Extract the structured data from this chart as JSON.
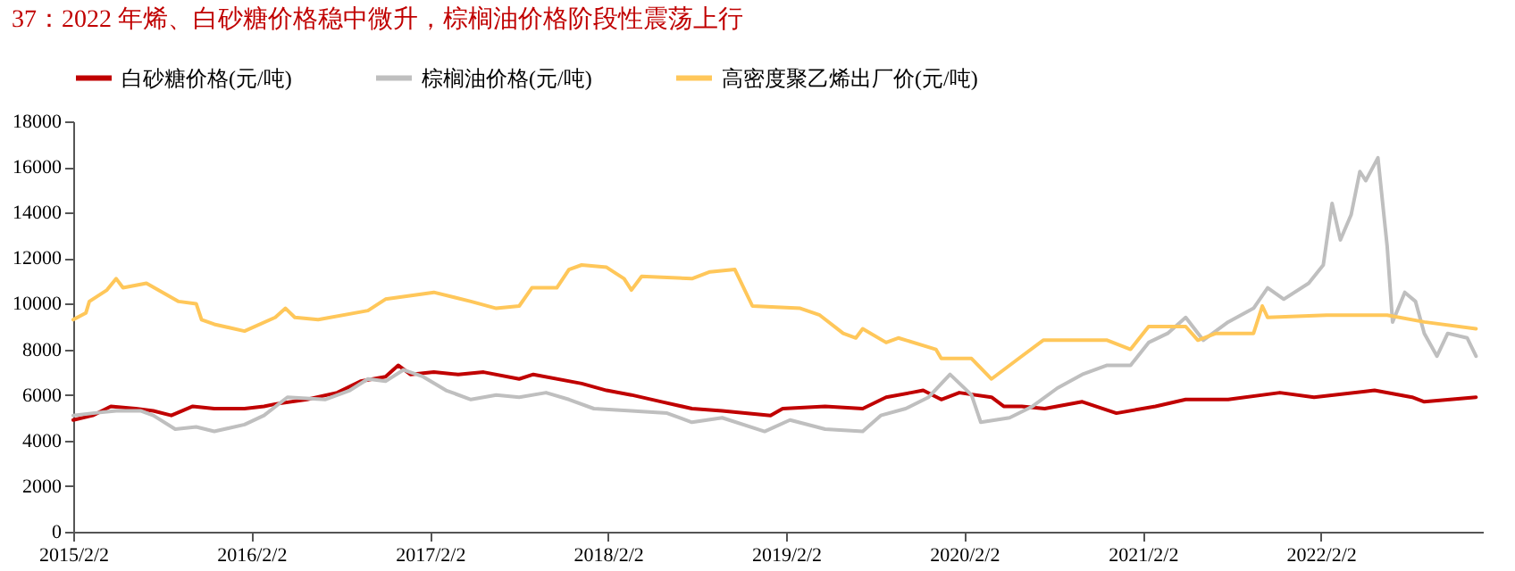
{
  "chart_data": {
    "type": "line",
    "title": "37：2022 年烯、白砂糖价格稳中微升，棕榈油价格阶段性震荡上行",
    "legend": "top",
    "line_style": "solid",
    "grid": false,
    "xlim": [
      "2015-02-02",
      "2022-12-31"
    ],
    "xticks": [
      {
        "value": "2015-02-02",
        "label": "2015/2/2"
      },
      {
        "value": "2016-02-02",
        "label": "2016/2/2"
      },
      {
        "value": "2017-02-02",
        "label": "2017/2/2"
      },
      {
        "value": "2018-02-02",
        "label": "2018/2/2"
      },
      {
        "value": "2019-02-02",
        "label": "2019/2/2"
      },
      {
        "value": "2020-02-02",
        "label": "2020/2/2"
      },
      {
        "value": "2021-02-02",
        "label": "2021/2/2"
      },
      {
        "value": "2022-02-02",
        "label": "2022/2/2"
      }
    ],
    "ylim": [
      0,
      18000
    ],
    "yticks": [
      0,
      2000,
      4000,
      6000,
      8000,
      10000,
      12000,
      14000,
      16000,
      18000
    ],
    "series": [
      {
        "name": "白砂糖价格(元/吨)",
        "color": "#c00000",
        "x": [
          "2015-02-02",
          "2015-03-14",
          "2015-04-20",
          "2015-06-10",
          "2015-07-16",
          "2015-08-22",
          "2015-10-05",
          "2015-11-18",
          "2016-01-19",
          "2016-02-28",
          "2016-03-22",
          "2016-05-26",
          "2016-07-27",
          "2016-09-13",
          "2016-11-03",
          "2016-11-29",
          "2016-12-24",
          "2017-02-10",
          "2017-04-01",
          "2017-05-23",
          "2017-08-04",
          "2017-09-02",
          "2017-12-10",
          "2018-01-30",
          "2018-03-22",
          "2018-05-23",
          "2018-07-24",
          "2018-09-24",
          "2019-01-01",
          "2019-01-26",
          "2019-04-23",
          "2019-07-09",
          "2019-08-26",
          "2019-10-16",
          "2019-11-10",
          "2019-12-17",
          "2020-01-23",
          "2020-03-29",
          "2020-04-23",
          "2020-05-30",
          "2020-07-16",
          "2020-10-01",
          "2020-12-10",
          "2021-02-28",
          "2021-05-01",
          "2021-07-27",
          "2021-11-10",
          "2022-01-19",
          "2022-05-23",
          "2022-08-08",
          "2022-09-02",
          "2022-12-17"
        ],
        "values": [
          4900,
          5100,
          5500,
          5400,
          5300,
          5100,
          5500,
          5400,
          5400,
          5500,
          5600,
          5800,
          6100,
          6600,
          6800,
          7300,
          6900,
          7000,
          6900,
          7000,
          6700,
          6900,
          6500,
          6200,
          6000,
          5700,
          5400,
          5300,
          5100,
          5400,
          5500,
          5400,
          5900,
          6100,
          6200,
          5800,
          6100,
          5900,
          5500,
          5500,
          5400,
          5700,
          5200,
          5500,
          5800,
          5800,
          6100,
          5900,
          6200,
          5900,
          5700,
          5900
        ]
      },
      {
        "name": "棕榈油价格(元/吨)",
        "color": "#bfbfbf",
        "x": [
          "2015-02-02",
          "2015-03-14",
          "2015-05-01",
          "2015-06-21",
          "2015-07-16",
          "2015-08-30",
          "2015-10-12",
          "2015-11-18",
          "2016-01-19",
          "2016-02-28",
          "2016-04-16",
          "2016-07-02",
          "2016-08-22",
          "2016-09-28",
          "2016-11-03",
          "2016-12-10",
          "2017-01-19",
          "2017-03-07",
          "2017-04-27",
          "2017-06-18",
          "2017-08-04",
          "2017-09-28",
          "2017-11-14",
          "2018-01-04",
          "2018-03-22",
          "2018-06-03",
          "2018-07-24",
          "2018-09-24",
          "2018-12-20",
          "2019-02-10",
          "2019-04-23",
          "2019-07-09",
          "2019-08-15",
          "2019-10-05",
          "2019-11-21",
          "2020-01-04",
          "2020-02-17",
          "2020-03-07",
          "2020-05-05",
          "2020-06-21",
          "2020-08-11",
          "2020-10-01",
          "2020-11-21",
          "2021-01-08",
          "2021-02-14",
          "2021-03-25",
          "2021-05-01",
          "2021-06-06",
          "2021-07-27",
          "2021-09-17",
          "2021-10-16",
          "2021-11-18",
          "2022-01-08",
          "2022-02-07",
          "2022-02-25",
          "2022-03-14",
          "2022-04-05",
          "2022-04-23",
          "2022-05-05",
          "2022-05-30",
          "2022-06-18",
          "2022-06-29",
          "2022-07-24",
          "2022-08-15",
          "2022-09-02",
          "2022-09-28",
          "2022-10-20",
          "2022-11-29",
          "2022-12-17"
        ],
        "values": [
          5100,
          5200,
          5300,
          5300,
          5100,
          4500,
          4600,
          4400,
          4700,
          5100,
          5900,
          5800,
          6200,
          6700,
          6600,
          7100,
          6800,
          6200,
          5800,
          6000,
          5900,
          6100,
          5800,
          5400,
          5300,
          5200,
          4800,
          5000,
          4400,
          4900,
          4500,
          4400,
          5100,
          5400,
          5900,
          6900,
          6000,
          4800,
          5000,
          5500,
          6300,
          6900,
          7300,
          7300,
          8300,
          8700,
          9400,
          8400,
          9200,
          9800,
          10700,
          10200,
          10900,
          11700,
          14400,
          12800,
          13900,
          15800,
          15400,
          16400,
          12500,
          9200,
          10500,
          10100,
          8700,
          7700,
          8700,
          8500,
          7700
        ]
      },
      {
        "name": "高密度聚乙烯出厂价(元/吨)",
        "color": "#ffc75a",
        "x": [
          "2015-02-02",
          "2015-02-28",
          "2015-03-07",
          "2015-04-12",
          "2015-05-01",
          "2015-05-15",
          "2015-07-02",
          "2015-09-06",
          "2015-10-12",
          "2015-10-23",
          "2015-11-18",
          "2016-01-19",
          "2016-03-22",
          "2016-04-12",
          "2016-05-01",
          "2016-06-18",
          "2016-09-28",
          "2016-11-03",
          "2017-02-10",
          "2017-04-27",
          "2017-06-18",
          "2017-08-04",
          "2017-08-30",
          "2017-10-20",
          "2017-11-14",
          "2017-12-10",
          "2018-01-30",
          "2018-03-07",
          "2018-03-22",
          "2018-04-12",
          "2018-07-24",
          "2018-08-30",
          "2018-10-20",
          "2018-11-25",
          "2019-03-03",
          "2019-04-12",
          "2019-05-30",
          "2019-06-25",
          "2019-07-09",
          "2019-08-26",
          "2019-09-20",
          "2019-12-06",
          "2019-12-17",
          "2020-02-17",
          "2020-03-29",
          "2020-05-30",
          "2020-07-13",
          "2020-11-21",
          "2021-01-08",
          "2021-02-14",
          "2021-05-01",
          "2021-05-26",
          "2021-07-02",
          "2021-09-17",
          "2021-10-05",
          "2021-10-16",
          "2022-02-14",
          "2022-06-18",
          "2022-09-02",
          "2022-12-17"
        ],
        "values": [
          9300,
          9600,
          10100,
          10600,
          11100,
          10700,
          10900,
          10100,
          10000,
          9300,
          9100,
          8800,
          9400,
          9800,
          9400,
          9300,
          9700,
          10200,
          10500,
          10100,
          9800,
          9900,
          10700,
          10700,
          11500,
          11700,
          11600,
          11100,
          10600,
          11200,
          11100,
          11400,
          11500,
          9900,
          9800,
          9500,
          8700,
          8500,
          8900,
          8300,
          8500,
          8000,
          7600,
          7600,
          6700,
          7700,
          8400,
          8400,
          8000,
          9000,
          9000,
          8400,
          8700,
          8700,
          9900,
          9400,
          9500,
          9500,
          9200,
          8900
        ]
      }
    ]
  }
}
